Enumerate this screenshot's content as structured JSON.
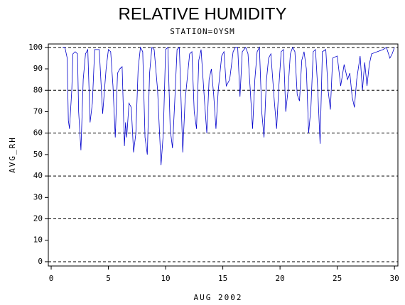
{
  "chart_data": {
    "type": "line",
    "title": "RELATIVE HUMIDITY",
    "subtitle": "STATION=OYSM",
    "x_label": "AUG 2002",
    "y_label": "AVG_RH",
    "xlim": [
      -0.25,
      30.3
    ],
    "ylim": [
      -2,
      101.6
    ],
    "xticks": [
      0,
      5,
      10,
      15,
      20,
      25,
      30
    ],
    "yticks": [
      0,
      10,
      20,
      30,
      40,
      50,
      60,
      70,
      80,
      90,
      100
    ],
    "grid": true,
    "series": [
      {
        "color": "#0000cc",
        "x": [
          1.0,
          1.2,
          1.4,
          1.5,
          1.6,
          1.8,
          1.9,
          2.1,
          2.3,
          2.4,
          2.6,
          2.8,
          3.0,
          3.2,
          3.4,
          3.6,
          3.8,
          4.0,
          4.2,
          4.5,
          4.8,
          5.0,
          5.2,
          5.4,
          5.6,
          5.8,
          6.0,
          6.2,
          6.4,
          6.5,
          6.6,
          6.8,
          7.0,
          7.2,
          7.4,
          7.6,
          7.8,
          8.0,
          8.2,
          8.4,
          8.6,
          8.8,
          9.0,
          9.3,
          9.6,
          9.8,
          10.0,
          10.2,
          10.4,
          10.6,
          10.8,
          11.0,
          11.2,
          11.5,
          11.7,
          11.9,
          12.1,
          12.3,
          12.5,
          12.7,
          12.9,
          13.1,
          13.4,
          13.6,
          13.8,
          14.0,
          14.2,
          14.4,
          14.6,
          14.9,
          15.1,
          15.3,
          15.6,
          15.9,
          16.1,
          16.3,
          16.5,
          16.7,
          17.0,
          17.2,
          17.4,
          17.6,
          17.8,
          18.0,
          18.2,
          18.4,
          18.6,
          18.8,
          19.0,
          19.2,
          19.5,
          19.7,
          19.9,
          20.1,
          20.3,
          20.5,
          20.7,
          20.9,
          21.1,
          21.3,
          21.5,
          21.7,
          21.9,
          22.1,
          22.3,
          22.5,
          22.7,
          22.9,
          23.1,
          23.3,
          23.5,
          23.7,
          24.0,
          24.2,
          24.4,
          24.6,
          25.0,
          25.3,
          25.6,
          25.9,
          26.1,
          26.3,
          26.5,
          26.7,
          27.0,
          27.2,
          27.4,
          27.6,
          27.8,
          28.0,
          28.5,
          29.0,
          29.3,
          29.6,
          29.8,
          30.0
        ],
        "values": [
          100,
          100,
          95,
          66,
          62,
          80,
          97,
          98,
          97,
          70,
          52,
          85,
          97,
          99,
          65,
          74,
          99,
          99,
          99,
          69,
          90,
          99,
          98,
          82,
          58,
          88,
          90,
          91,
          54,
          65,
          58,
          74,
          72,
          51,
          60,
          90,
          100,
          98,
          58,
          50,
          88,
          100,
          99,
          80,
          45,
          60,
          99,
          100,
          62,
          53,
          75,
          99,
          100,
          51,
          75,
          86,
          97,
          98,
          70,
          62,
          94,
          99,
          75,
          60,
          85,
          90,
          78,
          62,
          80,
          96,
          98,
          82,
          85,
          98,
          100,
          100,
          77,
          98,
          100,
          97,
          80,
          62,
          85,
          98,
          100,
          70,
          58,
          84,
          95,
          97,
          75,
          62,
          82,
          98,
          99,
          70,
          80,
          97,
          100,
          98,
          78,
          75,
          94,
          98,
          90,
          60,
          72,
          98,
          99,
          80,
          55,
          98,
          99,
          80,
          71,
          95,
          96,
          82,
          92,
          85,
          88,
          77,
          72,
          85,
          96,
          80,
          93,
          82,
          92,
          97,
          98,
          99,
          100,
          95,
          97,
          100
        ]
      }
    ]
  }
}
